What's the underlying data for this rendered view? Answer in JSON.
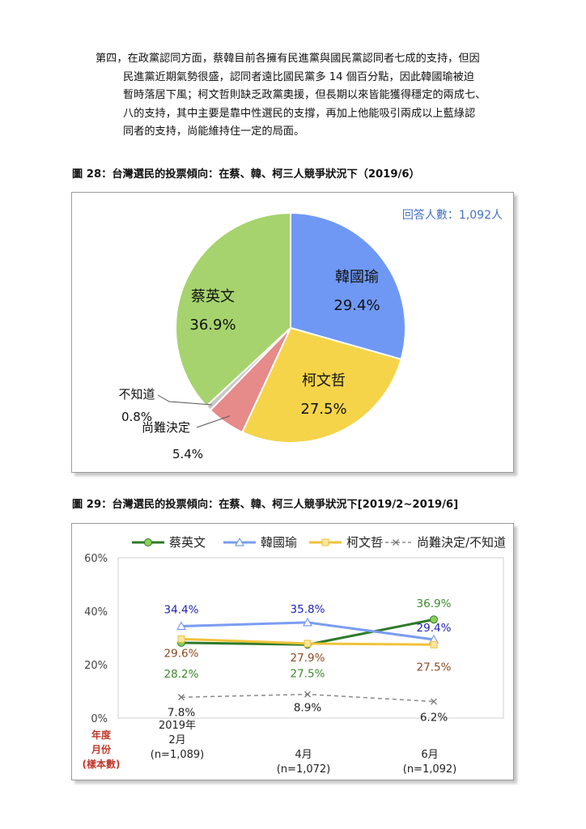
{
  "paragraph": {
    "lines": [
      "第四，在政黨認同方面，蔡韓目前各擁有民進黨與國民黨認同者七成的支持，但因",
      "民進黨近期氣勢很盛，認同者遠比國民黨多 14 個百分點，因此韓國瑜被迫",
      "暫時落居下風；柯文哲則缺乏政黨奧援，但長期以來皆能獲得穩定的兩成七、",
      "八的支持，其中主要是靠中性選民的支撐，再加上他能吸引兩成以上藍綠認",
      "同者的支持，尚能維持住一定的局面。"
    ]
  },
  "fig28": {
    "title": "圖 28：台灣選民的投票傾向：在蔡、韓、柯三人競爭狀況下（2019/6）",
    "respondents": "回答人數：1,092人"
  },
  "fig29": {
    "title": "圖 29：台灣選民的投票傾向：在蔡、韓、柯三人競爭狀況下[2019/2~2019/6]",
    "axis_title": [
      "年度",
      "月份",
      "(樣本數)"
    ]
  },
  "chart_data": [
    {
      "type": "pie",
      "slices": [
        {
          "label": "韓國瑜",
          "value": 29.4,
          "text": "29.4%",
          "color": "#6f98f5"
        },
        {
          "label": "柯文哲",
          "value": 27.5,
          "text": "27.5%",
          "color": "#f5d44a"
        },
        {
          "label": "尚難決定",
          "value": 5.4,
          "text": "5.4%",
          "color": "#e68a8a"
        },
        {
          "label": "不知道",
          "value": 0.8,
          "text": "0.8%",
          "color": "#c8c8c8"
        },
        {
          "label": "蔡英文",
          "value": 36.9,
          "text": "36.9%",
          "color": "#a6d36d"
        }
      ]
    },
    {
      "type": "line",
      "x": [
        "2019年\n2月\n(n=1,089)",
        "4月\n(n=1,072)",
        "6月\n(n=1,092)"
      ],
      "ylim": [
        0,
        60
      ],
      "yticks": [
        "0%",
        "20%",
        "40%",
        "60%"
      ],
      "legend_position": "top",
      "grid": false,
      "series": [
        {
          "name": "蔡英文",
          "values": [
            28.2,
            27.5,
            36.9
          ],
          "labels": [
            "28.2%",
            "27.5%",
            "36.9%"
          ],
          "color": "#2e7a2a",
          "label_color": "#3d8a2e"
        },
        {
          "name": "韓國瑜",
          "values": [
            34.4,
            35.8,
            29.4
          ],
          "labels": [
            "34.4%",
            "35.8%",
            "29.4%"
          ],
          "color": "#7a9df0",
          "label_color": "#2222bb"
        },
        {
          "name": "柯文哲",
          "values": [
            29.6,
            27.9,
            27.5
          ],
          "labels": [
            "29.6%",
            "27.9%",
            "27.5%"
          ],
          "color": "#f0c23a",
          "label_color": "#8b4a24"
        },
        {
          "name": "尚難決定/不知道",
          "values": [
            7.8,
            8.9,
            6.2
          ],
          "labels": [
            "7.8%",
            "8.9%",
            "6.2%"
          ],
          "color": "#8a8a8a",
          "label_color": "#222222"
        }
      ]
    }
  ]
}
